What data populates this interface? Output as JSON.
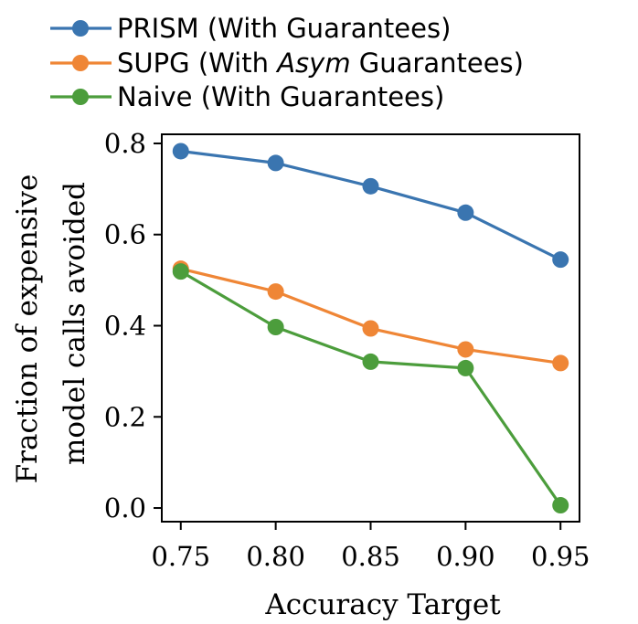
{
  "chart_data": {
    "type": "line",
    "x": [
      0.75,
      0.8,
      0.85,
      0.9,
      0.95
    ],
    "x_tick_labels": [
      "0.75",
      "0.80",
      "0.85",
      "0.90",
      "0.95"
    ],
    "y_ticks": [
      0.0,
      0.2,
      0.4,
      0.6,
      0.8
    ],
    "y_tick_labels": [
      "0.0",
      "0.2",
      "0.4",
      "0.6",
      "0.8"
    ],
    "xlim": [
      0.74,
      0.96
    ],
    "ylim": [
      -0.03,
      0.82
    ],
    "xlabel": "Accuracy Target",
    "ylabel_line1": "Fraction of expensive",
    "ylabel_line2": "model calls avoided",
    "legend_position": "above plot",
    "grid": false,
    "series": [
      {
        "name": "PRISM (With Guarantees)",
        "name_parts": [
          "PRISM (With Guarantees)"
        ],
        "color": "#3a75b0",
        "values": [
          0.783,
          0.757,
          0.706,
          0.648,
          0.545
        ]
      },
      {
        "name": "SUPG (With Asym Guarantees)",
        "name_parts": [
          "SUPG (With ",
          "Asym",
          " Guarantees)"
        ],
        "color": "#ef8636",
        "values": [
          0.525,
          0.475,
          0.394,
          0.348,
          0.318
        ]
      },
      {
        "name": "Naive (With Guarantees)",
        "name_parts": [
          "Naive (With Guarantees)"
        ],
        "color": "#4c9d3c",
        "values": [
          0.519,
          0.397,
          0.321,
          0.307,
          0.006
        ]
      }
    ]
  }
}
